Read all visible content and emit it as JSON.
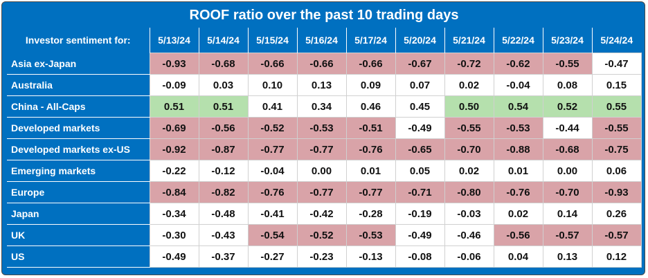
{
  "chart_data": {
    "type": "table",
    "title": "ROOF ratio over the past 10 trading days",
    "corner_label": "Investor sentiment for:",
    "columns": [
      "5/13/24",
      "5/14/24",
      "5/15/24",
      "5/16/24",
      "5/17/24",
      "5/20/24",
      "5/21/24",
      "5/22/24",
      "5/23/24",
      "5/24/24"
    ],
    "rows": [
      {
        "label": "Asia ex-Japan",
        "values": [
          "-0.93",
          "-0.68",
          "-0.66",
          "-0.66",
          "-0.66",
          "-0.67",
          "-0.72",
          "-0.62",
          "-0.55",
          "-0.47"
        ]
      },
      {
        "label": "Australia",
        "values": [
          "-0.09",
          "0.03",
          "0.10",
          "0.13",
          "0.09",
          "0.07",
          "0.02",
          "-0.04",
          "0.08",
          "0.15"
        ]
      },
      {
        "label": "China - All-Caps",
        "values": [
          "0.51",
          "0.51",
          "0.41",
          "0.34",
          "0.46",
          "0.45",
          "0.50",
          "0.54",
          "0.52",
          "0.55"
        ]
      },
      {
        "label": "Developed markets",
        "values": [
          "-0.69",
          "-0.56",
          "-0.52",
          "-0.53",
          "-0.51",
          "-0.49",
          "-0.55",
          "-0.53",
          "-0.44",
          "-0.55"
        ]
      },
      {
        "label": "Developed markets ex-US",
        "values": [
          "-0.92",
          "-0.87",
          "-0.77",
          "-0.77",
          "-0.76",
          "-0.65",
          "-0.70",
          "-0.88",
          "-0.68",
          "-0.75"
        ]
      },
      {
        "label": "Emerging markets",
        "values": [
          "-0.22",
          "-0.12",
          "-0.04",
          "0.00",
          "0.01",
          "0.05",
          "0.02",
          "0.01",
          "0.00",
          "0.06"
        ]
      },
      {
        "label": "Europe",
        "values": [
          "-0.84",
          "-0.82",
          "-0.76",
          "-0.77",
          "-0.77",
          "-0.71",
          "-0.80",
          "-0.76",
          "-0.70",
          "-0.93"
        ]
      },
      {
        "label": "Japan",
        "values": [
          "-0.34",
          "-0.48",
          "-0.41",
          "-0.42",
          "-0.28",
          "-0.19",
          "-0.03",
          "0.02",
          "0.14",
          "0.26"
        ]
      },
      {
        "label": "UK",
        "values": [
          "-0.30",
          "-0.43",
          "-0.54",
          "-0.52",
          "-0.53",
          "-0.49",
          "-0.46",
          "-0.56",
          "-0.57",
          "-0.57"
        ]
      },
      {
        "label": "US",
        "values": [
          "-0.49",
          "-0.37",
          "-0.27",
          "-0.23",
          "-0.13",
          "-0.08",
          "-0.06",
          "0.04",
          "0.13",
          "0.12"
        ]
      }
    ],
    "highlight_negative_threshold": -0.5,
    "highlight_positive_threshold": 0.5
  },
  "colors": {
    "frame": "#0070c0",
    "negative_highlight": "#d9a3a8",
    "positive_highlight": "#b5e0ad",
    "neutral": "#ffffff"
  }
}
